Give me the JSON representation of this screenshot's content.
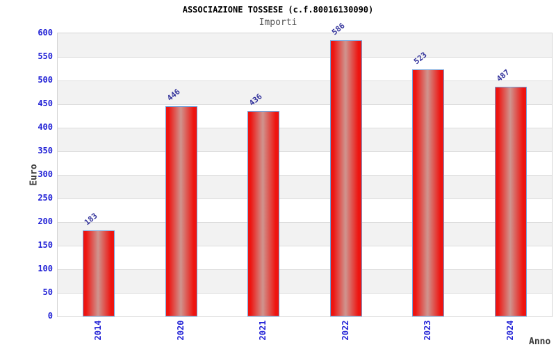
{
  "chart_data": {
    "type": "bar",
    "title": "ASSOCIAZIONE TOSSESE (c.f.80016130090)",
    "subtitle": "Importi",
    "xlabel": "Anno",
    "ylabel": "Euro",
    "categories": [
      "2014",
      "2020",
      "2021",
      "2022",
      "2023",
      "2024"
    ],
    "values": [
      183,
      446,
      436,
      586,
      523,
      487
    ],
    "ylim": [
      0,
      600
    ],
    "ytick_step": 50,
    "grid": true,
    "legend": false,
    "colors": {
      "bar_fill_edge": "#ee1410",
      "bar_fill_mid": "#cf958f",
      "bar_border": "#74a3dc",
      "value_label": "#32329b",
      "tick_label": "#2222d6",
      "axis_title": "#3a3a3a",
      "title": "#000000",
      "subtitle": "#595959",
      "band": "#f2f2f2",
      "gridline": "#dcdcdc",
      "plot_border": "#d4d4d4",
      "background": "#ffffff"
    }
  }
}
